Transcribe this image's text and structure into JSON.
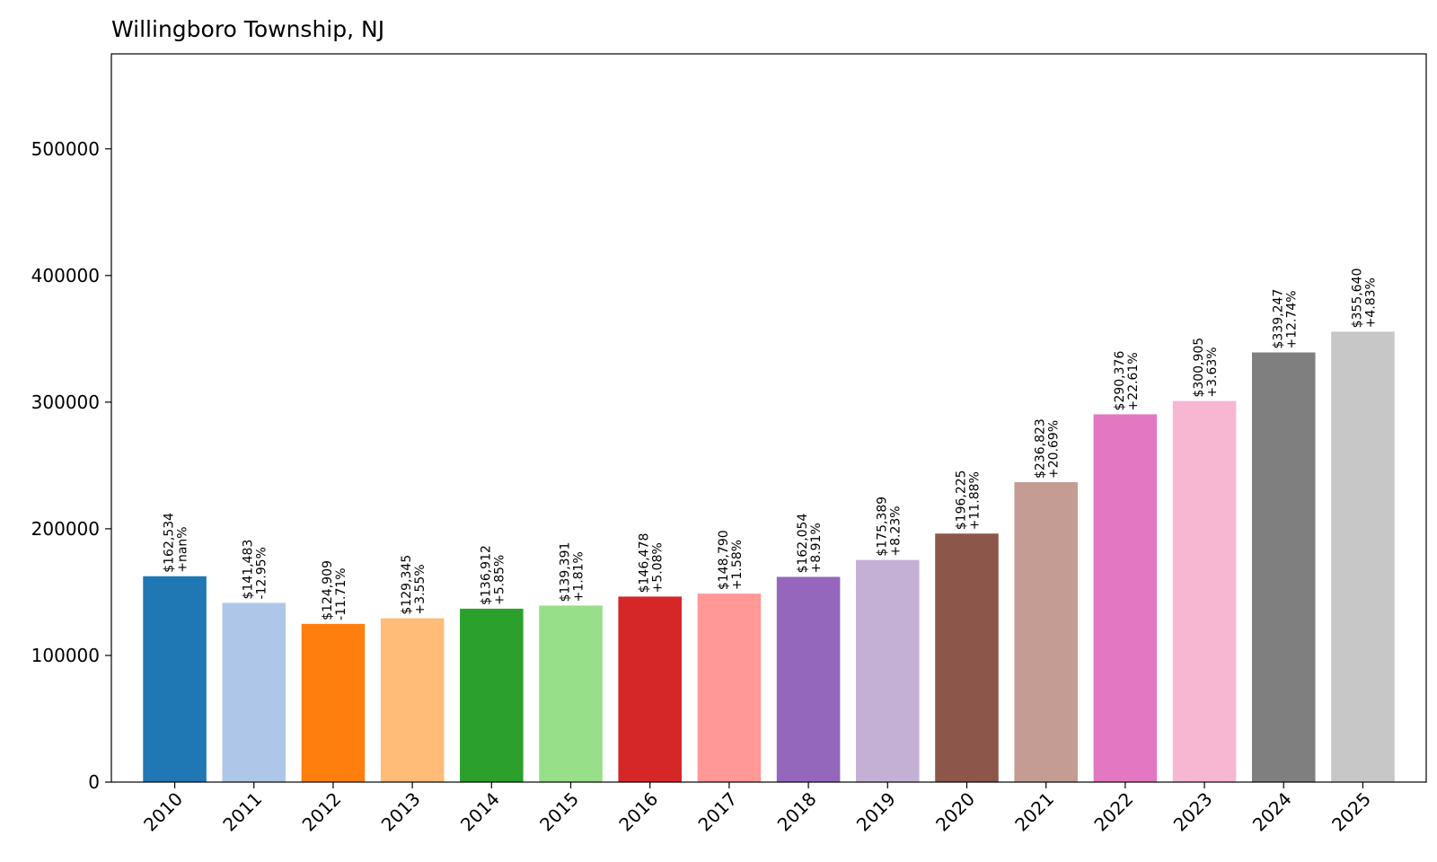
{
  "chart_data": {
    "type": "bar",
    "title": "Willingboro Township, NJ",
    "xlabel": "",
    "ylabel": "",
    "categories": [
      "2010",
      "2011",
      "2012",
      "2013",
      "2014",
      "2015",
      "2016",
      "2017",
      "2018",
      "2019",
      "2020",
      "2021",
      "2022",
      "2023",
      "2024",
      "2025"
    ],
    "values": [
      162534,
      141483,
      124909,
      129345,
      136912,
      139391,
      146478,
      148790,
      162054,
      175389,
      196225,
      236823,
      290376,
      300905,
      339247,
      355640
    ],
    "value_labels": [
      "$162,534",
      "$141,483",
      "$124,909",
      "$129,345",
      "$136,912",
      "$139,391",
      "$146,478",
      "$148,790",
      "$162,054",
      "$175,389",
      "$196,225",
      "$236,823",
      "$290,376",
      "$300,905",
      "$339,247",
      "$355,640"
    ],
    "change_labels": [
      "+nan%",
      "-12.95%",
      "-11.71%",
      "+3.55%",
      "+5.85%",
      "+1.81%",
      "+5.08%",
      "+1.58%",
      "+8.91%",
      "+8.23%",
      "+11.88%",
      "+20.69%",
      "+22.61%",
      "+3.63%",
      "+12.74%",
      "+4.83%"
    ],
    "colors": [
      "#1f77b4",
      "#aec7e8",
      "#ff7f0e",
      "#ffbb78",
      "#2ca02c",
      "#98df8a",
      "#d62728",
      "#ff9896",
      "#9467bd",
      "#c5b0d5",
      "#8c564b",
      "#c49c94",
      "#e377c2",
      "#f7b6d2",
      "#7f7f7f",
      "#c7c7c7"
    ],
    "ylim": [
      0,
      575000
    ],
    "yticks": [
      0,
      100000,
      200000,
      300000,
      400000,
      500000
    ],
    "ytick_labels": [
      "0",
      "100000",
      "200000",
      "300000",
      "400000",
      "500000"
    ],
    "grid": false,
    "legend": "none"
  }
}
